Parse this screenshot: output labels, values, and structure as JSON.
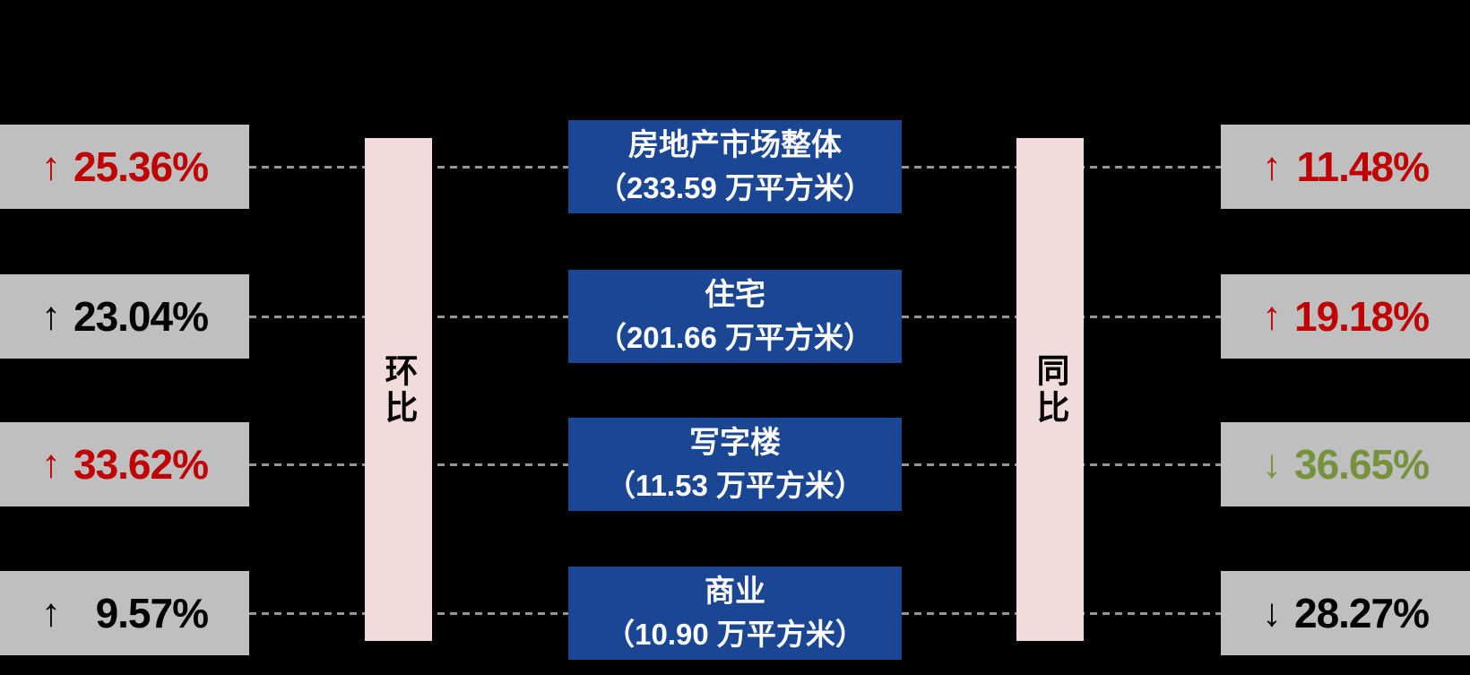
{
  "labels": {
    "mom": "环比",
    "yoy": "同比"
  },
  "colors": {
    "background": "#000000",
    "gray_box": "#BFBFBF",
    "blue_box": "#1B4693",
    "blue_box_text": "#FFFFFF",
    "pink_pillar": "#F2DCDB",
    "dash_line": "#969696",
    "up_red": "#C00000",
    "down_green": "#76923C",
    "neutral_black": "#000000"
  },
  "rows": [
    {
      "category": "房地产市场整体",
      "area_label": "（233.59 万平方米）",
      "mom": {
        "arrow": "↑",
        "value": "25.36%",
        "color": "#C00000"
      },
      "yoy": {
        "arrow": "↑",
        "value": "11.48%",
        "color": "#C00000"
      }
    },
    {
      "category": "住宅",
      "area_label": "（201.66 万平方米）",
      "mom": {
        "arrow": "↑",
        "value": "23.04%",
        "color": "#000000"
      },
      "yoy": {
        "arrow": "↑",
        "value": "19.18%",
        "color": "#C00000"
      }
    },
    {
      "category": "写字楼",
      "area_label": "（11.53 万平方米）",
      "mom": {
        "arrow": "↑",
        "value": "33.62%",
        "color": "#C00000"
      },
      "yoy": {
        "arrow": "↓",
        "value": "36.65%",
        "color": "#76923C"
      }
    },
    {
      "category": "商业",
      "area_label": "（10.90 万平方米）",
      "mom": {
        "arrow": "↑",
        "value": "9.57%",
        "color": "#000000"
      },
      "yoy": {
        "arrow": "↓",
        "value": "28.27%",
        "color": "#000000"
      }
    }
  ],
  "chart_data": {
    "type": "table",
    "title": "",
    "left_label": "环比",
    "right_label": "同比",
    "unit": "万平方米",
    "categories": [
      "房地产市场整体",
      "住宅",
      "写字楼",
      "商业"
    ],
    "area_wan_sqm": [
      233.59,
      201.66,
      11.53,
      10.9
    ],
    "mom_change_pct": [
      25.36,
      23.04,
      33.62,
      9.57
    ],
    "mom_direction": [
      "up",
      "up",
      "up",
      "up"
    ],
    "yoy_change_pct": [
      11.48,
      19.18,
      -36.65,
      -28.27
    ],
    "yoy_direction": [
      "up",
      "up",
      "down",
      "down"
    ],
    "grid": false,
    "legend_position": "none"
  }
}
